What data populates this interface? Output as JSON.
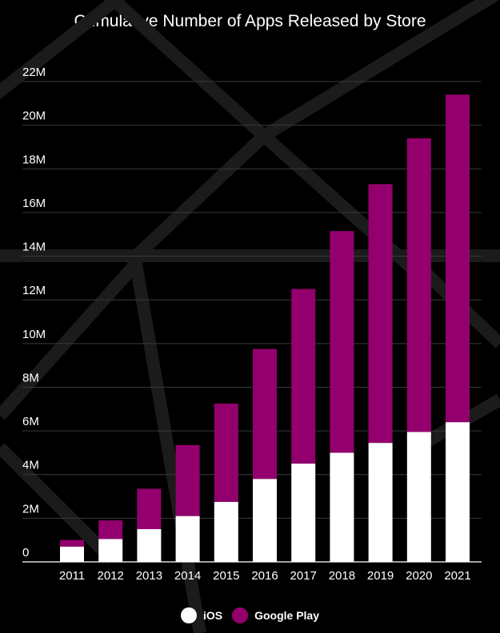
{
  "colors": {
    "background": "#000000",
    "ios": "#ffffff",
    "google_play": "#93006e",
    "grid": "#3a3a3a",
    "text": "#ffffff"
  },
  "legend": {
    "position": "bottom",
    "items": [
      {
        "label": "iOS",
        "color": "#ffffff"
      },
      {
        "label": "Google Play",
        "color": "#93006e"
      }
    ]
  },
  "chart_data": {
    "type": "bar",
    "stacked": true,
    "title": "Cumulative Number of Apps Released by Store",
    "xlabel": "",
    "ylabel": "",
    "categories": [
      "2011",
      "2012",
      "2013",
      "2014",
      "2015",
      "2016",
      "2017",
      "2018",
      "2019",
      "2020",
      "2021"
    ],
    "series": [
      {
        "name": "iOS",
        "color": "#ffffff",
        "values": [
          0.7,
          1.05,
          1.5,
          2.1,
          2.75,
          3.8,
          4.5,
          5.0,
          5.45,
          5.95,
          6.4
        ]
      },
      {
        "name": "Google Play",
        "color": "#93006e",
        "values": [
          0.3,
          0.85,
          1.85,
          3.25,
          4.5,
          5.95,
          8.0,
          10.15,
          11.85,
          13.45,
          15.0
        ]
      }
    ],
    "ylim": [
      0,
      22
    ],
    "yticks": [
      0,
      2,
      4,
      6,
      8,
      10,
      12,
      14,
      16,
      18,
      20,
      22
    ],
    "ytick_labels": [
      "0",
      "2M",
      "4M",
      "6M",
      "8M",
      "10M",
      "12M",
      "14M",
      "16M",
      "18M",
      "20M",
      "22M"
    ],
    "grid": true
  }
}
